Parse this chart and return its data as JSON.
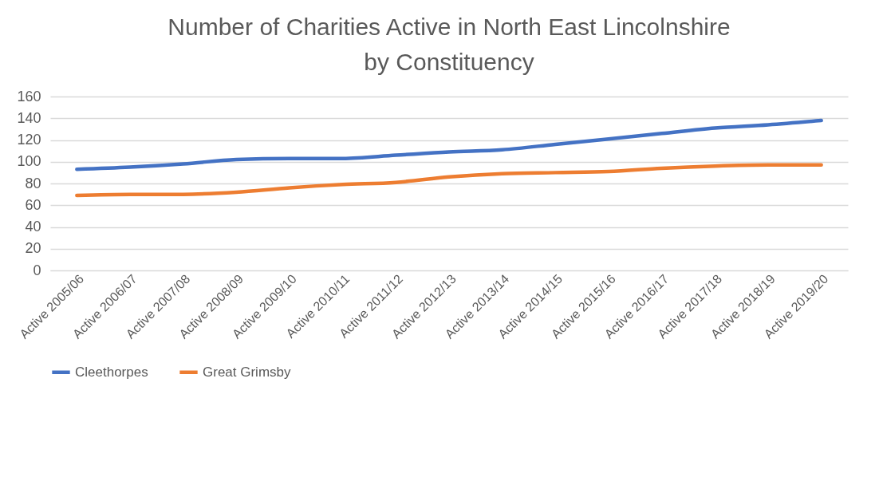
{
  "chart_data": {
    "type": "line",
    "title": "Number of Charities Active in North East Lincolnshire by Constituency",
    "categories": [
      "Active 2005/06",
      "Active 2006/07",
      "Active 2007/08",
      "Active 2008/09",
      "Active 2009/10",
      "Active 2010/11",
      "Active 2011/12",
      "Active 2012/13",
      "Active 2013/14",
      "Active 2014/15",
      "Active 2015/16",
      "Active 2016/17",
      "Active 2017/18",
      "Active 2018/19",
      "Active 2019/20"
    ],
    "series": [
      {
        "name": "Cleethorpes",
        "color": "#4472c4",
        "values": [
          93,
          95,
          98,
          102,
          103,
          103,
          106,
          109,
          111,
          116,
          121,
          126,
          131,
          134,
          138
        ]
      },
      {
        "name": "Great Grimsby",
        "color": "#ed7d31",
        "values": [
          69,
          70,
          70,
          72,
          76,
          79,
          81,
          86,
          89,
          90,
          91,
          94,
          96,
          97,
          97
        ]
      }
    ],
    "ylim": [
      0,
      160
    ],
    "yticks": [
      0,
      20,
      40,
      60,
      80,
      100,
      120,
      140,
      160
    ],
    "grid": "y",
    "legend": "bottom"
  }
}
